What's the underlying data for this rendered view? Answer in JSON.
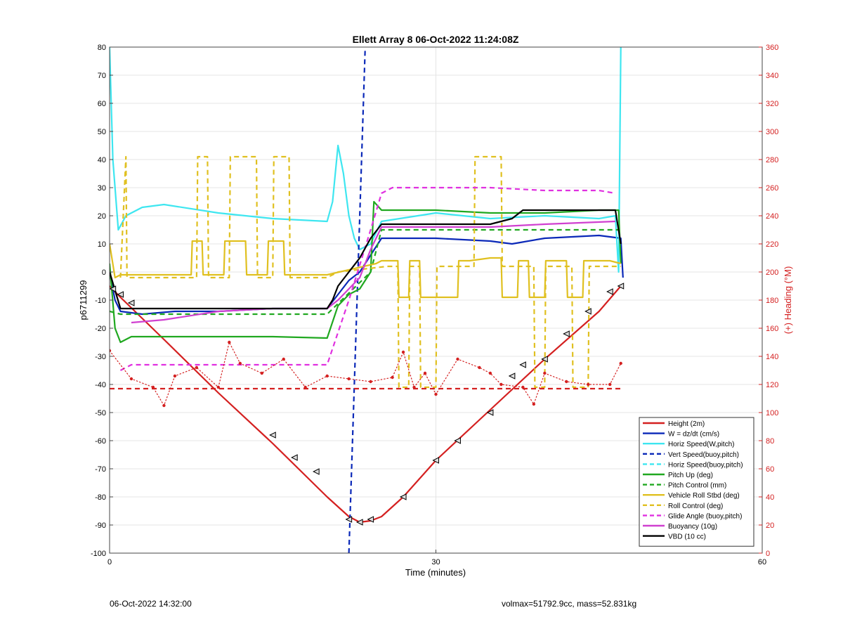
{
  "footer": {
    "timestamp": "06-Oct-2022 14:32:00",
    "summary": "volmax=51792.9cc, mass=52.831kg"
  },
  "colors": {
    "height": "#d42020",
    "w": "#0a28b8",
    "horiz_speed": "#3ee6f0",
    "vert_speed_buoy": "#0a28b8",
    "pitch": "#20a820",
    "roll": "#e0c020",
    "glide": "#e030e0",
    "buoyancy": "#d040d0",
    "vbd": "#000000",
    "heading": "#d42020",
    "right_axis": "#d42020"
  },
  "chart_data": {
    "type": "line",
    "title": "Ellett Array 8 06-Oct-2022 11:24:08Z",
    "xlabel": "Time (minutes)",
    "ylabel": "p6711299",
    "y2label": "(+) Heading (°M)",
    "xlim": [
      0,
      60
    ],
    "ylim": [
      -100,
      80
    ],
    "y2lim": [
      0,
      360
    ],
    "xticks": [
      "0",
      "30",
      "60"
    ],
    "yticks": [
      "-100",
      "-90",
      "-80",
      "-70",
      "-60",
      "-50",
      "-40",
      "-30",
      "-20",
      "-10",
      "0",
      "10",
      "20",
      "30",
      "40",
      "50",
      "60",
      "70",
      "80"
    ],
    "y2ticks": [
      "0",
      "20",
      "40",
      "60",
      "80",
      "100",
      "120",
      "140",
      "160",
      "180",
      "200",
      "220",
      "240",
      "260",
      "280",
      "300",
      "320",
      "340",
      "360"
    ],
    "grid": true,
    "legend_position": "bottom-right",
    "legend": [
      "Height (2m)",
      "W = dz/dt (cm/s)",
      "Horiz Speed(W,pitch)",
      "Vert Speed(buoy,pitch)",
      "Horiz Speed(buoy,pitch)",
      "Pitch Up (deg)",
      "Pitch Control (mm)",
      "Vehicle Roll Stbd (deg)",
      "Roll Control (deg)",
      "Glide Angle (buoy,pitch)",
      "Buoyancy (10g)",
      "VBD (10 cc)"
    ],
    "series": [
      {
        "name": "Height (2m)",
        "style": "solid",
        "color_key": "height",
        "x": [
          0,
          1,
          5,
          10,
          15,
          20,
          22,
          23,
          24,
          25,
          27,
          30,
          35,
          40,
          45,
          47
        ],
        "y": [
          -5,
          -9,
          -24,
          -43,
          -61,
          -80,
          -87,
          -89,
          -88.5,
          -87,
          -80,
          -67,
          -49,
          -31,
          -14,
          -5
        ]
      },
      {
        "name": "W = dz/dt (cm/s)",
        "style": "solid",
        "color_key": "w",
        "x": [
          0,
          0.5,
          1,
          3,
          6,
          10,
          15,
          20,
          21,
          22,
          23,
          24,
          25,
          30,
          35,
          37,
          40,
          45,
          47,
          47.2
        ],
        "y": [
          0,
          -10,
          -14,
          -15,
          -14,
          -14,
          -13,
          -13,
          -8,
          -3,
          0,
          6,
          12,
          12,
          11,
          10,
          12,
          13,
          12,
          -2
        ]
      },
      {
        "name": "Horiz Speed(W,pitch)",
        "style": "solid",
        "color_key": "horiz_speed",
        "x": [
          0,
          0.3,
          0.8,
          1.5,
          3,
          5,
          10,
          15,
          20,
          20.5,
          21,
          21.5,
          22,
          22.5,
          23,
          24,
          25,
          30,
          35,
          40,
          45,
          46.5,
          46.8,
          47
        ],
        "y": [
          80,
          40,
          15,
          20,
          23,
          24,
          21,
          19,
          18,
          25,
          45,
          35,
          20,
          12,
          8,
          10,
          18,
          21,
          19,
          20,
          19,
          20,
          0,
          80
        ]
      },
      {
        "name": "Vert Speed(buoy,pitch)",
        "style": "dashed",
        "color_key": "vert_speed_buoy",
        "x": [
          22,
          23.5
        ],
        "y": [
          -100,
          80
        ]
      },
      {
        "name": "Pitch Up (deg)",
        "style": "solid",
        "color_key": "pitch",
        "x": [
          0,
          0.5,
          1,
          2,
          5,
          10,
          15,
          20,
          21,
          22,
          23,
          24,
          24.3,
          25,
          30,
          35,
          40,
          45,
          46.8,
          47
        ],
        "y": [
          3,
          -20,
          -25,
          -23,
          -23,
          -23,
          -23,
          -23.5,
          -12,
          -8,
          -6,
          0,
          25,
          22,
          22,
          21,
          21,
          22,
          22,
          3
        ]
      },
      {
        "name": "Pitch Control (mm)",
        "style": "dashed",
        "color_key": "pitch",
        "x": [
          0,
          1,
          5,
          10,
          15,
          20,
          24,
          25,
          30,
          35,
          40,
          46.8
        ],
        "y": [
          -14,
          -15,
          -15,
          -15,
          -15,
          -15,
          0,
          15,
          15,
          15,
          15,
          15
        ]
      },
      {
        "name": "Vehicle Roll Stbd (deg)",
        "style": "solid",
        "color_key": "roll",
        "x": [
          0,
          0.5,
          1,
          2,
          7.5,
          7.6,
          8.5,
          8.6,
          10.5,
          10.6,
          12.5,
          12.6,
          14.5,
          14.6,
          16,
          16.1,
          20,
          24.5,
          25,
          26.5,
          26.6,
          27.5,
          27.6,
          28.5,
          28.6,
          32,
          32.1,
          33,
          33.1,
          35,
          36,
          36.1,
          37.5,
          37.6,
          38.5,
          38.6,
          40,
          40.1,
          42,
          42.1,
          43.5,
          43.6,
          46,
          47
        ],
        "y": [
          10,
          -2,
          -1,
          -1,
          -1,
          11,
          11,
          -1,
          -1,
          11,
          11,
          -1,
          -1,
          11,
          11,
          -1,
          -1,
          3,
          4,
          4,
          -9,
          -9,
          4,
          4,
          -9,
          -9,
          4,
          4,
          4,
          5,
          5,
          -9,
          -9,
          4,
          4,
          -9,
          -9,
          4,
          4,
          -9,
          -9,
          4,
          4,
          3
        ]
      },
      {
        "name": "Roll Control (deg)",
        "style": "dashed",
        "color_key": "roll",
        "x": [
          1,
          1.5,
          1.6,
          8,
          8.1,
          9,
          9.1,
          11,
          11.1,
          13.5,
          13.6,
          15,
          15.1,
          16.5,
          16.6,
          20,
          21,
          25.5,
          26.5,
          26.6,
          27.5,
          27.6,
          28.5,
          28.6,
          30,
          30.1,
          33.5,
          33.6,
          36,
          36.1,
          39,
          39.1,
          40,
          40.1,
          42.5,
          42.6,
          44,
          44.1,
          47
        ],
        "y": [
          -2,
          41,
          -2,
          -2,
          41,
          41,
          -2,
          -2,
          41,
          41,
          -2,
          -2,
          41,
          41,
          -2,
          -2,
          0,
          2,
          2,
          -41,
          -41,
          2,
          2,
          -41,
          -41,
          2,
          2,
          41,
          41,
          2,
          2,
          -41,
          -41,
          2,
          2,
          -41,
          -41,
          2,
          2
        ]
      },
      {
        "name": "Glide Angle (buoy,pitch)",
        "style": "dashed",
        "color_key": "glide",
        "x": [
          1,
          2,
          5,
          10,
          15,
          20,
          22,
          24,
          25,
          26,
          30,
          35,
          40,
          45,
          46.5
        ],
        "y": [
          -35,
          -33,
          -33,
          -33,
          -33,
          -33,
          -10,
          15,
          28,
          30,
          30,
          30,
          29,
          29,
          28
        ]
      },
      {
        "name": "Buoyancy (10g)",
        "style": "solid",
        "color_key": "buoyancy",
        "x": [
          2,
          5,
          10,
          15,
          20,
          21,
          23,
          24,
          25,
          30,
          35,
          40,
          46.5
        ],
        "y": [
          -18,
          -17,
          -14,
          -13,
          -13,
          -10,
          -2,
          8,
          16,
          16,
          16,
          17,
          18
        ]
      },
      {
        "name": "VBD (10 cc)",
        "style": "solid",
        "color_key": "vbd",
        "x": [
          0,
          1,
          5,
          10,
          15,
          20,
          20.5,
          21,
          22,
          23,
          24,
          25,
          30,
          35,
          37,
          38,
          40,
          46.5,
          47
        ],
        "y": [
          0,
          -13,
          -13,
          -13,
          -13,
          -13,
          -10,
          -5,
          0,
          5,
          12,
          17,
          17,
          17,
          19,
          22,
          22,
          22,
          10
        ]
      },
      {
        "name": "Heading",
        "style": "dots",
        "color_key": "heading",
        "axis": "right",
        "x": [
          0,
          2,
          4,
          5,
          6,
          8,
          10,
          11,
          12,
          14,
          16,
          18,
          20,
          22,
          24,
          26,
          27,
          28,
          29,
          30,
          32,
          34,
          35,
          36,
          38,
          39,
          40,
          42,
          44,
          46,
          47
        ],
        "y": [
          144,
          124,
          118,
          105,
          126,
          132,
          118,
          150,
          135,
          128,
          138,
          118,
          126,
          124,
          122,
          125,
          143,
          118,
          128,
          113,
          138,
          132,
          128,
          120,
          118,
          106,
          128,
          122,
          120,
          120,
          135
        ]
      },
      {
        "name": "Heading reference",
        "style": "dashed",
        "color_key": "heading",
        "axis": "right",
        "x": [
          0,
          47
        ],
        "y": [
          117,
          117
        ]
      }
    ],
    "markers": {
      "name": "triangles",
      "color_key": "vbd",
      "axis": "left",
      "x": [
        0.3,
        1,
        2,
        15,
        17,
        19,
        22,
        23,
        24,
        27,
        30,
        32,
        35,
        37,
        38,
        40,
        42,
        44,
        46,
        47
      ],
      "y": [
        -6,
        -8,
        -11,
        -58,
        -66,
        -71,
        -88,
        -89,
        -88,
        -80,
        -67,
        -60,
        -50,
        -37,
        -33,
        -31,
        -22,
        -14,
        -7,
        -5
      ]
    }
  }
}
